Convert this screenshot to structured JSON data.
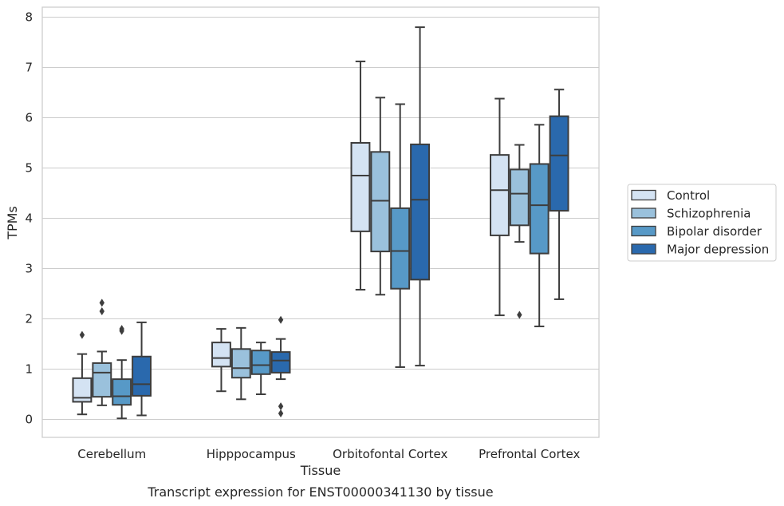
{
  "caption": "Transcript expression for ENST00000341130 by tissue",
  "chart_data": {
    "type": "box",
    "xlabel": "Tissue",
    "ylabel": "TPMs",
    "ylim": [
      -0.35,
      8.2
    ],
    "yticks": [
      0,
      1,
      2,
      3,
      4,
      5,
      6,
      7,
      8
    ],
    "grid": true,
    "legend_position": "right",
    "categories": [
      "Cerebellum",
      "Hipppocampus",
      "Orbitofontal Cortex",
      "Prefrontal Cortex"
    ],
    "series": [
      {
        "name": "Control",
        "color": "#d4e3f3",
        "boxes": [
          {
            "whislo": 0.1,
            "q1": 0.35,
            "med": 0.43,
            "q3": 0.82,
            "whishi": 1.3,
            "fliers": [
              1.68
            ]
          },
          {
            "whislo": 0.56,
            "q1": 1.05,
            "med": 1.22,
            "q3": 1.53,
            "whishi": 1.8,
            "fliers": []
          },
          {
            "whislo": 2.58,
            "q1": 3.74,
            "med": 4.85,
            "q3": 5.5,
            "whishi": 7.12,
            "fliers": []
          },
          {
            "whislo": 2.07,
            "q1": 3.66,
            "med": 4.56,
            "q3": 5.26,
            "whishi": 6.38,
            "fliers": []
          }
        ]
      },
      {
        "name": "Schizophrenia",
        "color": "#9ac1dc",
        "boxes": [
          {
            "whislo": 0.28,
            "q1": 0.45,
            "med": 0.93,
            "q3": 1.12,
            "whishi": 1.35,
            "fliers": [
              2.15,
              2.32
            ]
          },
          {
            "whislo": 0.4,
            "q1": 0.83,
            "med": 1.02,
            "q3": 1.4,
            "whishi": 1.82,
            "fliers": []
          },
          {
            "whislo": 2.48,
            "q1": 3.34,
            "med": 4.35,
            "q3": 5.32,
            "whishi": 6.4,
            "fliers": []
          },
          {
            "whislo": 3.53,
            "q1": 3.86,
            "med": 4.49,
            "q3": 4.97,
            "whishi": 5.46,
            "fliers": [
              2.08
            ]
          }
        ]
      },
      {
        "name": "Bipolar disorder",
        "color": "#5799c7",
        "boxes": [
          {
            "whislo": 0.02,
            "q1": 0.29,
            "med": 0.46,
            "q3": 0.8,
            "whishi": 1.18,
            "fliers": [
              1.76,
              1.8
            ]
          },
          {
            "whislo": 0.5,
            "q1": 0.9,
            "med": 1.08,
            "q3": 1.37,
            "whishi": 1.53,
            "fliers": []
          },
          {
            "whislo": 1.04,
            "q1": 2.6,
            "med": 3.35,
            "q3": 4.2,
            "whishi": 6.27,
            "fliers": []
          },
          {
            "whislo": 1.85,
            "q1": 3.3,
            "med": 4.26,
            "q3": 5.08,
            "whishi": 5.86,
            "fliers": []
          }
        ]
      },
      {
        "name": "Major depression",
        "color": "#2a69ad",
        "boxes": [
          {
            "whislo": 0.08,
            "q1": 0.47,
            "med": 0.7,
            "q3": 1.25,
            "whishi": 1.93,
            "fliers": []
          },
          {
            "whislo": 0.8,
            "q1": 0.93,
            "med": 1.17,
            "q3": 1.34,
            "whishi": 1.6,
            "fliers": [
              0.12,
              0.26,
              1.98
            ]
          },
          {
            "whislo": 1.07,
            "q1": 2.78,
            "med": 4.37,
            "q3": 5.47,
            "whishi": 7.8,
            "fliers": []
          },
          {
            "whislo": 2.39,
            "q1": 4.15,
            "med": 5.25,
            "q3": 6.03,
            "whishi": 6.56,
            "fliers": []
          }
        ]
      }
    ]
  }
}
